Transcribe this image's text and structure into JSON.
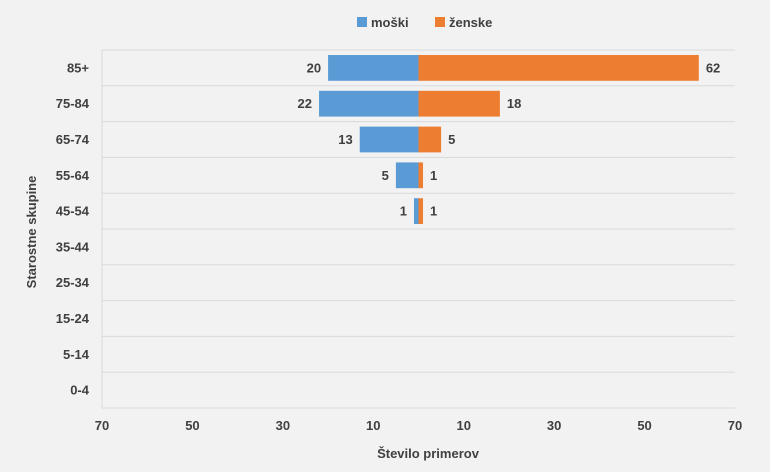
{
  "chart_data": {
    "type": "bar",
    "orientation": "horizontal",
    "layout": "population-pyramid",
    "categories": [
      "85+",
      "75-84",
      "65-74",
      "55-64",
      "45-54",
      "35-44",
      "25-34",
      "15-24",
      "5-14",
      "0-4"
    ],
    "series": [
      {
        "name": "moški",
        "color": "#5b9bd5",
        "direction": "left",
        "values": [
          20,
          22,
          13,
          5,
          1,
          0,
          0,
          0,
          0,
          0
        ]
      },
      {
        "name": "ženske",
        "color": "#ed7d31",
        "direction": "right",
        "values": [
          62,
          18,
          5,
          1,
          1,
          0,
          0,
          0,
          0,
          0
        ]
      }
    ],
    "xlabel": "Število primerov",
    "ylabel": "Starostne skupine",
    "xlim": [
      -70,
      70
    ],
    "x_ticks": [
      -70,
      -50,
      -30,
      -10,
      10,
      30,
      50,
      70
    ],
    "x_tick_labels": [
      "70",
      "50",
      "30",
      "10",
      "10",
      "30",
      "50",
      "70"
    ],
    "grid": true,
    "legend_position": "top"
  }
}
